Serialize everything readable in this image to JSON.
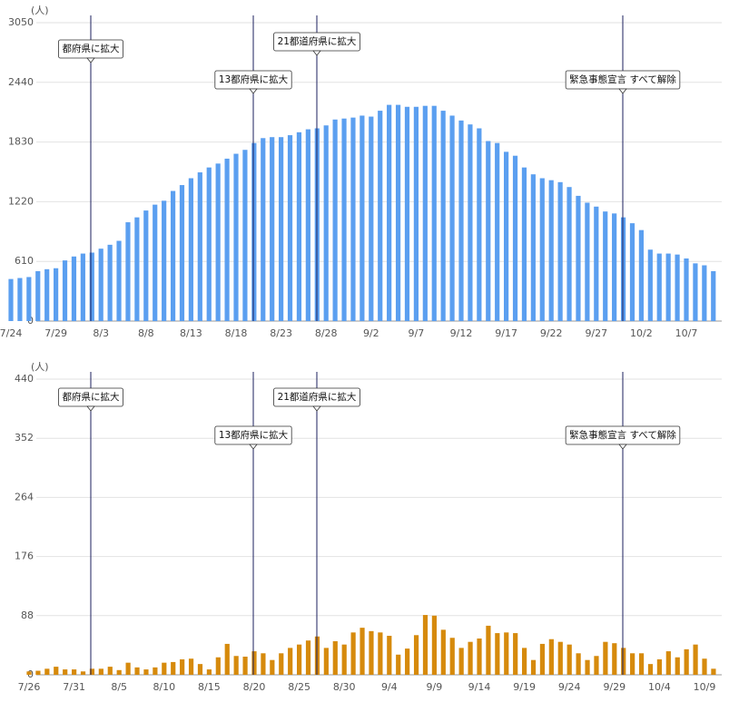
{
  "chart_data": [
    {
      "type": "bar",
      "y_unit": "(人)",
      "color": "#5b9ff0",
      "grid": true,
      "ylim": [
        0,
        3050
      ],
      "yticks": [
        0,
        610,
        1220,
        1830,
        2440,
        3050
      ],
      "categories": [
        "7/24",
        null,
        null,
        null,
        null,
        "7/29",
        null,
        null,
        null,
        null,
        "8/3",
        null,
        null,
        null,
        null,
        "8/8",
        null,
        null,
        null,
        null,
        "8/13",
        null,
        null,
        null,
        null,
        "8/18",
        null,
        null,
        null,
        null,
        "8/23",
        null,
        null,
        null,
        null,
        "8/28",
        null,
        null,
        null,
        null,
        "9/2",
        null,
        null,
        null,
        null,
        "9/7",
        null,
        null,
        null,
        null,
        "9/12",
        null,
        null,
        null,
        null,
        "9/17",
        null,
        null,
        null,
        null,
        "9/22",
        null,
        null,
        null,
        null,
        "9/27",
        null,
        null,
        null,
        null,
        "10/2",
        null,
        null,
        null,
        null,
        "10/7",
        null,
        null,
        null
      ],
      "values": [
        430,
        440,
        450,
        510,
        530,
        540,
        620,
        660,
        690,
        700,
        740,
        780,
        820,
        1010,
        1060,
        1130,
        1190,
        1230,
        1330,
        1390,
        1460,
        1520,
        1570,
        1610,
        1660,
        1710,
        1750,
        1820,
        1870,
        1880,
        1880,
        1900,
        1930,
        1960,
        1970,
        2000,
        2060,
        2070,
        2080,
        2100,
        2090,
        2150,
        2210,
        2210,
        2190,
        2190,
        2200,
        2200,
        2150,
        2100,
        2050,
        2010,
        1970,
        1840,
        1820,
        1730,
        1690,
        1570,
        1500,
        1460,
        1440,
        1420,
        1370,
        1280,
        1210,
        1170,
        1120,
        1100,
        1060,
        1000,
        930,
        730,
        690,
        690,
        680,
        640,
        590,
        570,
        510
      ],
      "annotations": [
        {
          "text": "都府県に拡大"
        },
        {
          "text": "13都府県に拡大"
        },
        {
          "text": "21都道府県に拡大"
        },
        {
          "text": "緊急事態宣言 すべて解除"
        }
      ]
    },
    {
      "type": "bar",
      "y_unit": "(人)",
      "color": "#d68a0c",
      "grid": true,
      "ylim": [
        0,
        440
      ],
      "yticks": [
        0,
        88,
        176,
        264,
        352,
        440
      ],
      "categories": [
        "7/26",
        null,
        null,
        null,
        null,
        "7/31",
        null,
        null,
        null,
        null,
        "8/5",
        null,
        null,
        null,
        null,
        "8/10",
        null,
        null,
        null,
        null,
        "8/15",
        null,
        null,
        null,
        null,
        "8/20",
        null,
        null,
        null,
        null,
        "8/25",
        null,
        null,
        null,
        null,
        "8/30",
        null,
        null,
        null,
        null,
        "9/4",
        null,
        null,
        null,
        null,
        "9/9",
        null,
        null,
        null,
        null,
        "9/14",
        null,
        null,
        null,
        null,
        "9/19",
        null,
        null,
        null,
        null,
        "9/24",
        null,
        null,
        null,
        null,
        "9/29",
        null,
        null,
        null,
        null,
        "10/4",
        null,
        null,
        null,
        null,
        "10/9",
        null
      ],
      "values": [
        5,
        6,
        9,
        12,
        8,
        8,
        5,
        9,
        9,
        12,
        7,
        18,
        11,
        8,
        11,
        18,
        19,
        23,
        24,
        16,
        8,
        26,
        46,
        28,
        27,
        35,
        32,
        22,
        32,
        40,
        45,
        51,
        57,
        40,
        50,
        45,
        63,
        70,
        65,
        63,
        58,
        30,
        39,
        59,
        89,
        88,
        67,
        55,
        40,
        49,
        54,
        73,
        62,
        63,
        62,
        40,
        22,
        46,
        53,
        49,
        45,
        32,
        22,
        28,
        49,
        47,
        40,
        32,
        32,
        16,
        23,
        35,
        26,
        38,
        45,
        24,
        9
      ],
      "annotations": [
        {
          "text": "都府県に拡大"
        },
        {
          "text": "13都府県に拡大"
        },
        {
          "text": "21都道府県に拡大"
        },
        {
          "text": "緊急事態宣言 すべて解除"
        }
      ]
    }
  ]
}
